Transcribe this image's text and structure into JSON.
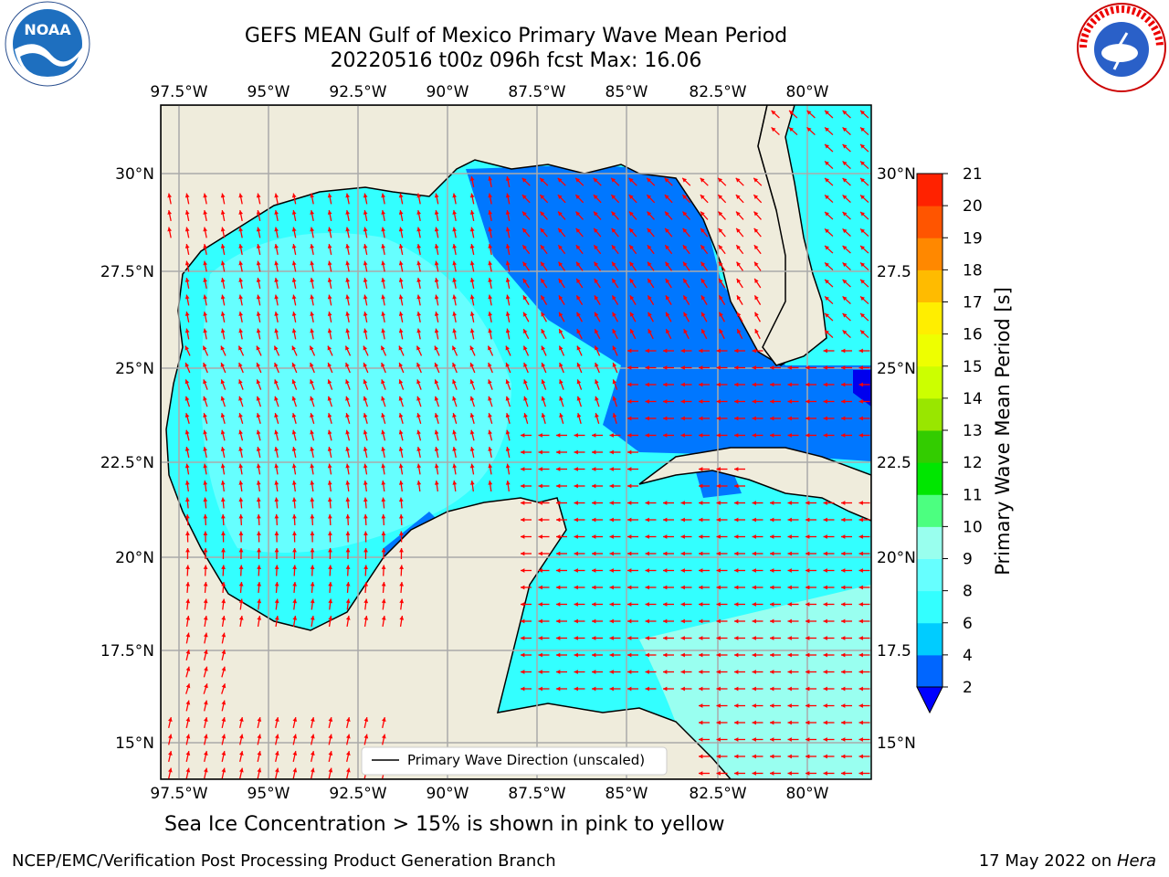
{
  "header": {
    "title_line1": "GEFS MEAN Gulf of Mexico Primary Wave Mean Period",
    "title_line2": "20220516 t00z 096h fcst   Max: 16.06"
  },
  "logos": {
    "left": "noaa-logo",
    "right": "national-weather-service-logo"
  },
  "map": {
    "lon_labels": [
      "97.5°W",
      "95°W",
      "92.5°W",
      "90°W",
      "87.5°W",
      "85°W",
      "82.5°W",
      "80°W"
    ],
    "lat_labels": [
      "30°N",
      "27.5°N",
      "25°N",
      "22.5°N",
      "20°N",
      "17.5°N",
      "15°N"
    ],
    "right_lat_labels": [
      "30°N",
      "27.5",
      "25°N",
      "22.5",
      "20°N",
      "17.5",
      "15°N"
    ],
    "land_color": "#efecdc",
    "legend_label": "Primary Wave Direction (unscaled)",
    "arrow_color": "#ff0000"
  },
  "colorbar": {
    "title": "Primary Wave Mean Period [s]",
    "tick_labels": [
      "2",
      "4",
      "6",
      "8",
      "9",
      "10",
      "11",
      "12",
      "13",
      "14",
      "15",
      "16",
      "17",
      "18",
      "19",
      "20",
      "21"
    ],
    "colors": [
      "#0066ff",
      "#00ccff",
      "#33ffff",
      "#66ffff",
      "#99ffee",
      "#4cff80",
      "#00e600",
      "#33cc00",
      "#99e600",
      "#ccff00",
      "#eeff00",
      "#ffee00",
      "#ffbb00",
      "#ff8800",
      "#ff5500",
      "#ff2200"
    ],
    "under_color": "#0000ff"
  },
  "subtitle": "Sea Ice Concentration > 15% is shown in pink to yellow",
  "footer": {
    "left": "NCEP/EMC/Verification Post Processing Product Generation Branch",
    "right_date": "17 May 2022 on ",
    "right_host": "Hera"
  }
}
